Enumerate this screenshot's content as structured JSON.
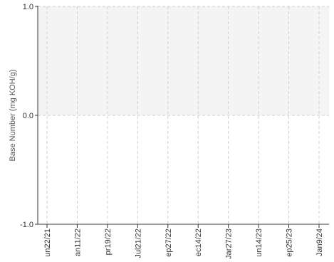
{
  "chart_data": {
    "type": "line",
    "title": "",
    "xlabel": "",
    "ylabel": "Base Number (mg KOH/g)",
    "ylim": [
      -1.0,
      1.0
    ],
    "yticks": [
      "1.0",
      "0.0",
      "-1.0"
    ],
    "yticks_values": [
      1.0,
      0.0,
      -1.0
    ],
    "x_tick_labels": [
      "un22/21",
      "an11/22",
      "pr19/22",
      "Jul21/22",
      "ep27/22",
      "ec14/22",
      "Jar27/23",
      "un14/23",
      "ep25/23",
      "Jan9/24"
    ],
    "series": [],
    "grid": true,
    "colors": {
      "band_fill": "#f4f4f4",
      "grid": "#cfcfcf",
      "axis": "#333333"
    }
  }
}
